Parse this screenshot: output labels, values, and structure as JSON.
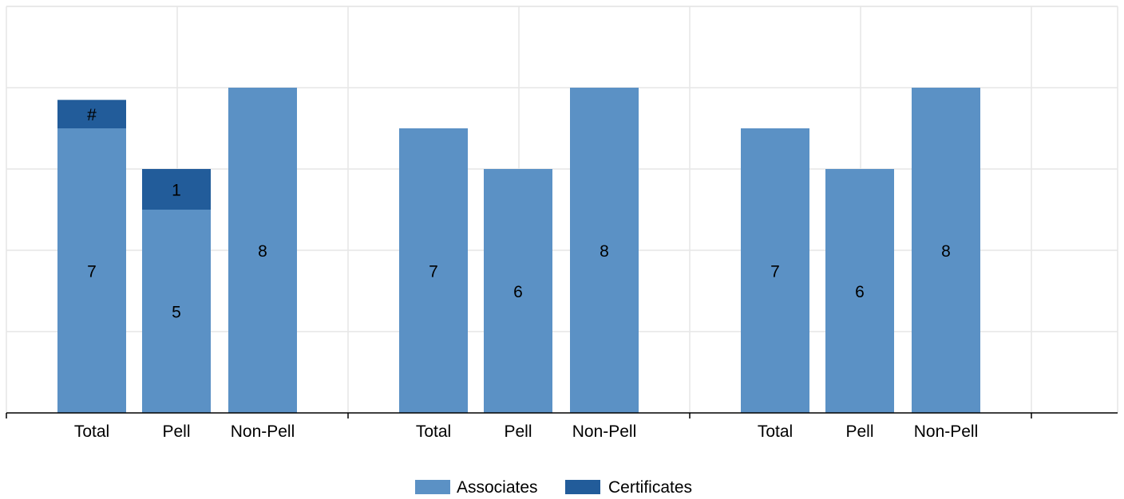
{
  "chart_data": {
    "type": "bar",
    "stacked": true,
    "grid": true,
    "legend_position": "bottom",
    "ylim": [
      0,
      10
    ],
    "groups": [
      {
        "categories": [
          "Total",
          "Pell",
          "Non-Pell"
        ],
        "series": [
          {
            "name": "Associates",
            "values": [
              7,
              5,
              8
            ],
            "labels": [
              "7",
              "5",
              "8"
            ]
          },
          {
            "name": "Certificates",
            "values": [
              0.7,
              1,
              0
            ],
            "labels": [
              "#",
              "1",
              ""
            ]
          }
        ]
      },
      {
        "categories": [
          "Total",
          "Pell",
          "Non-Pell"
        ],
        "series": [
          {
            "name": "Associates",
            "values": [
              7,
              6,
              8
            ],
            "labels": [
              "7",
              "6",
              "8"
            ]
          },
          {
            "name": "Certificates",
            "values": [
              0,
              0,
              0
            ],
            "labels": [
              "",
              "",
              ""
            ]
          }
        ]
      },
      {
        "categories": [
          "Total",
          "Pell",
          "Non-Pell"
        ],
        "series": [
          {
            "name": "Associates",
            "values": [
              7,
              6,
              8
            ],
            "labels": [
              "7",
              "6",
              "8"
            ]
          },
          {
            "name": "Certificates",
            "values": [
              0,
              0,
              0
            ],
            "labels": [
              "",
              "",
              ""
            ]
          }
        ]
      }
    ],
    "legend": [
      {
        "name": "Associates",
        "color": "#5b91c5"
      },
      {
        "name": "Certificates",
        "color": "#225c9a"
      }
    ]
  }
}
